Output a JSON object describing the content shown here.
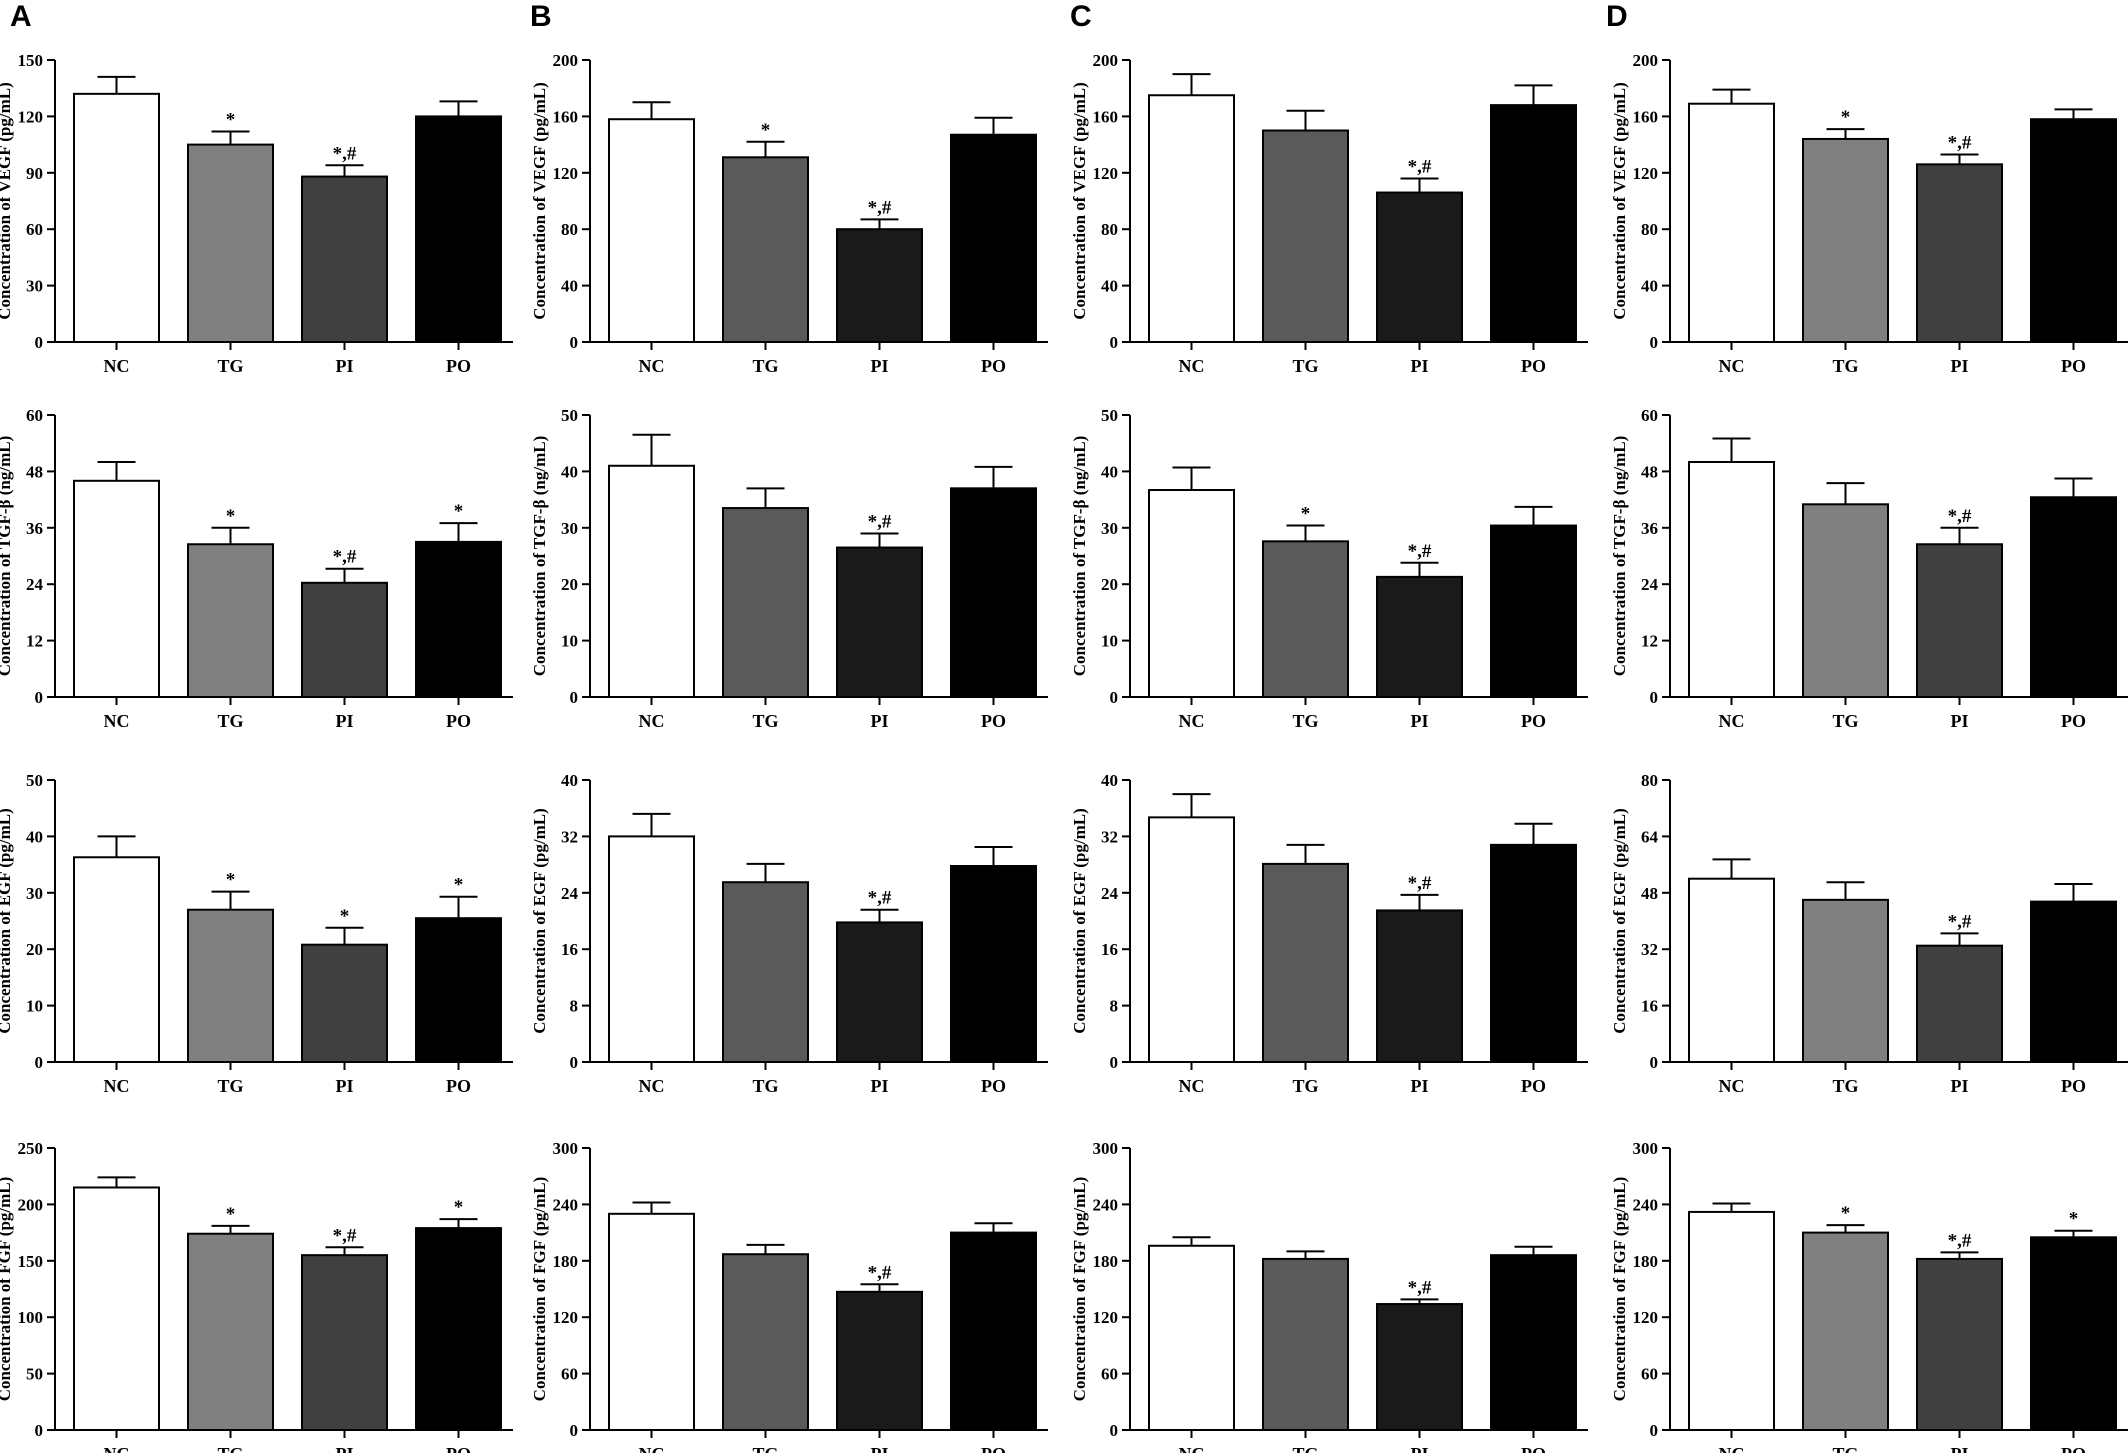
{
  "panels": [
    "A",
    "B",
    "C",
    "D"
  ],
  "chart_data": [
    {
      "type": "bar",
      "panel": "A",
      "ylabel": "Concentration of VEGF (pg/mL)",
      "categories": [
        "NC",
        "TG",
        "PI",
        "PO"
      ],
      "values": [
        132,
        105,
        88,
        120
      ],
      "errors": [
        9,
        7,
        6,
        8
      ],
      "annotations": [
        "",
        "*",
        "*,#",
        ""
      ],
      "ylim": [
        0,
        150
      ],
      "yticks": [
        0,
        30,
        60,
        90,
        120,
        150
      ],
      "colors": [
        "#ffffff",
        "#808080",
        "#404040",
        "#000000"
      ]
    },
    {
      "type": "bar",
      "panel": "B",
      "ylabel": "Concentration of VEGF (pg/mL)",
      "categories": [
        "NC",
        "TG",
        "PI",
        "PO"
      ],
      "values": [
        158,
        131,
        80,
        147
      ],
      "errors": [
        12,
        11,
        7,
        12
      ],
      "annotations": [
        "",
        "*",
        "*,#",
        ""
      ],
      "ylim": [
        0,
        200
      ],
      "yticks": [
        0,
        40,
        80,
        120,
        160,
        200
      ],
      "colors": [
        "#ffffff",
        "#5a5a5a",
        "#1a1a1a",
        "#000000"
      ]
    },
    {
      "type": "bar",
      "panel": "C",
      "ylabel": "Concentration of VEGF (pg/mL)",
      "categories": [
        "NC",
        "TG",
        "PI",
        "PO"
      ],
      "values": [
        175,
        150,
        106,
        168
      ],
      "errors": [
        15,
        14,
        10,
        14
      ],
      "annotations": [
        "",
        "",
        "*,#",
        ""
      ],
      "ylim": [
        0,
        200
      ],
      "yticks": [
        0,
        40,
        80,
        120,
        160,
        200
      ],
      "colors": [
        "#ffffff",
        "#5a5a5a",
        "#1a1a1a",
        "#000000"
      ]
    },
    {
      "type": "bar",
      "panel": "D",
      "ylabel": "Concentration of VEGF (pg/mL)",
      "categories": [
        "NC",
        "TG",
        "PI",
        "PO"
      ],
      "values": [
        169,
        144,
        126,
        158
      ],
      "errors": [
        10,
        7,
        7,
        7
      ],
      "annotations": [
        "",
        "*",
        "*,#",
        ""
      ],
      "ylim": [
        0,
        200
      ],
      "yticks": [
        0,
        40,
        80,
        120,
        160,
        200
      ],
      "colors": [
        "#ffffff",
        "#808080",
        "#404040",
        "#000000"
      ]
    },
    {
      "type": "bar",
      "panel": "A",
      "ylabel": "Concentration of TGF-β (ng/mL)",
      "categories": [
        "NC",
        "TG",
        "PI",
        "PO"
      ],
      "values": [
        46,
        32.5,
        24.3,
        33
      ],
      "errors": [
        4,
        3.5,
        3,
        4
      ],
      "annotations": [
        "",
        "*",
        "*,#",
        "*"
      ],
      "ylim": [
        0,
        60
      ],
      "yticks": [
        0,
        12,
        24,
        36,
        48,
        60
      ],
      "colors": [
        "#ffffff",
        "#808080",
        "#404040",
        "#000000"
      ]
    },
    {
      "type": "bar",
      "panel": "B",
      "ylabel": "Concentration of TGF-β (ng/mL)",
      "categories": [
        "NC",
        "TG",
        "PI",
        "PO"
      ],
      "values": [
        41,
        33.5,
        26.5,
        37
      ],
      "errors": [
        5.5,
        3.5,
        2.5,
        3.8
      ],
      "annotations": [
        "",
        "",
        "*,#",
        ""
      ],
      "ylim": [
        0,
        50
      ],
      "yticks": [
        0,
        10,
        20,
        30,
        40,
        50
      ],
      "colors": [
        "#ffffff",
        "#5a5a5a",
        "#1a1a1a",
        "#000000"
      ]
    },
    {
      "type": "bar",
      "panel": "C",
      "ylabel": "Concentration of TGF-β (ng/mL)",
      "categories": [
        "NC",
        "TG",
        "PI",
        "PO"
      ],
      "values": [
        36.7,
        27.6,
        21.3,
        30.4
      ],
      "errors": [
        4,
        2.8,
        2.5,
        3.3
      ],
      "annotations": [
        "",
        "*",
        "*,#",
        ""
      ],
      "ylim": [
        0,
        50
      ],
      "yticks": [
        0,
        10,
        20,
        30,
        40,
        50
      ],
      "colors": [
        "#ffffff",
        "#5a5a5a",
        "#1a1a1a",
        "#000000"
      ]
    },
    {
      "type": "bar",
      "panel": "D",
      "ylabel": "Concentration of TGF-β (ng/mL)",
      "categories": [
        "NC",
        "TG",
        "PI",
        "PO"
      ],
      "values": [
        50,
        41,
        32.5,
        42.5
      ],
      "errors": [
        5,
        4.5,
        3.5,
        4
      ],
      "annotations": [
        "",
        "",
        "*,#",
        ""
      ],
      "ylim": [
        0,
        60
      ],
      "yticks": [
        0,
        12,
        24,
        36,
        48,
        60
      ],
      "colors": [
        "#ffffff",
        "#808080",
        "#404040",
        "#000000"
      ]
    },
    {
      "type": "bar",
      "panel": "A",
      "ylabel": "Concentration of EGF (pg/mL)",
      "categories": [
        "NC",
        "TG",
        "PI",
        "PO"
      ],
      "values": [
        36.3,
        27,
        20.8,
        25.5
      ],
      "errors": [
        3.7,
        3.2,
        3,
        3.8
      ],
      "annotations": [
        "",
        "*",
        "*",
        "*"
      ],
      "ylim": [
        0,
        50
      ],
      "yticks": [
        0,
        10,
        20,
        30,
        40,
        50
      ],
      "colors": [
        "#ffffff",
        "#808080",
        "#404040",
        "#000000"
      ]
    },
    {
      "type": "bar",
      "panel": "B",
      "ylabel": "Concentration of EGF (pg/mL)",
      "categories": [
        "NC",
        "TG",
        "PI",
        "PO"
      ],
      "values": [
        32,
        25.5,
        19.8,
        27.8
      ],
      "errors": [
        3.2,
        2.6,
        1.8,
        2.7
      ],
      "annotations": [
        "",
        "",
        "*,#",
        ""
      ],
      "ylim": [
        0,
        40
      ],
      "yticks": [
        0,
        8,
        16,
        24,
        32,
        40
      ],
      "colors": [
        "#ffffff",
        "#5a5a5a",
        "#1a1a1a",
        "#000000"
      ]
    },
    {
      "type": "bar",
      "panel": "C",
      "ylabel": "Concentration of EGF (pg/mL)",
      "categories": [
        "NC",
        "TG",
        "PI",
        "PO"
      ],
      "values": [
        34.7,
        28.1,
        21.5,
        30.8
      ],
      "errors": [
        3.3,
        2.7,
        2.2,
        3
      ],
      "annotations": [
        "",
        "",
        "*,#",
        ""
      ],
      "ylim": [
        0,
        40
      ],
      "yticks": [
        0,
        8,
        16,
        24,
        32,
        40
      ],
      "colors": [
        "#ffffff",
        "#5a5a5a",
        "#1a1a1a",
        "#000000"
      ]
    },
    {
      "type": "bar",
      "panel": "D",
      "ylabel": "Concentration of EGF (pg/mL)",
      "categories": [
        "NC",
        "TG",
        "PI",
        "PO"
      ],
      "values": [
        52,
        46,
        33,
        45.5
      ],
      "errors": [
        5.5,
        5,
        3.5,
        5
      ],
      "annotations": [
        "",
        "",
        "*,#",
        ""
      ],
      "ylim": [
        0,
        80
      ],
      "yticks": [
        0,
        16,
        32,
        48,
        64,
        80
      ],
      "colors": [
        "#ffffff",
        "#808080",
        "#404040",
        "#000000"
      ]
    },
    {
      "type": "bar",
      "panel": "A",
      "ylabel": "Concentration of FGF (pg/mL)",
      "categories": [
        "NC",
        "TG",
        "PI",
        "PO"
      ],
      "values": [
        215,
        174,
        155,
        179
      ],
      "errors": [
        9,
        7,
        7,
        8
      ],
      "annotations": [
        "",
        "*",
        "*,#",
        "*"
      ],
      "ylim": [
        0,
        250
      ],
      "yticks": [
        0,
        50,
        100,
        150,
        200,
        250
      ],
      "colors": [
        "#ffffff",
        "#808080",
        "#404040",
        "#000000"
      ]
    },
    {
      "type": "bar",
      "panel": "B",
      "ylabel": "Concentration of FGF (pg/mL)",
      "categories": [
        "NC",
        "TG",
        "PI",
        "PO"
      ],
      "values": [
        230,
        187,
        147,
        210
      ],
      "errors": [
        12,
        10,
        8,
        10
      ],
      "annotations": [
        "",
        "",
        "*,#",
        ""
      ],
      "ylim": [
        0,
        300
      ],
      "yticks": [
        0,
        60,
        120,
        180,
        240,
        300
      ],
      "colors": [
        "#ffffff",
        "#5a5a5a",
        "#1a1a1a",
        "#000000"
      ]
    },
    {
      "type": "bar",
      "panel": "C",
      "ylabel": "Concentration of FGF (pg/mL)",
      "categories": [
        "NC",
        "TG",
        "PI",
        "PO"
      ],
      "values": [
        196,
        182,
        134,
        186
      ],
      "errors": [
        9,
        8,
        5,
        9
      ],
      "annotations": [
        "",
        "",
        "*,#",
        ""
      ],
      "ylim": [
        0,
        300
      ],
      "yticks": [
        0,
        60,
        120,
        180,
        240,
        300
      ],
      "colors": [
        "#ffffff",
        "#5a5a5a",
        "#1a1a1a",
        "#000000"
      ]
    },
    {
      "type": "bar",
      "panel": "D",
      "ylabel": "Concentration of FGF (pg/mL)",
      "categories": [
        "NC",
        "TG",
        "PI",
        "PO"
      ],
      "values": [
        232,
        210,
        182,
        205
      ],
      "errors": [
        9,
        8,
        7,
        7
      ],
      "annotations": [
        "",
        "*",
        "*,#",
        "*"
      ],
      "ylim": [
        0,
        300
      ],
      "yticks": [
        0,
        60,
        120,
        180,
        240,
        300
      ],
      "colors": [
        "#ffffff",
        "#808080",
        "#404040",
        "#000000"
      ]
    }
  ]
}
